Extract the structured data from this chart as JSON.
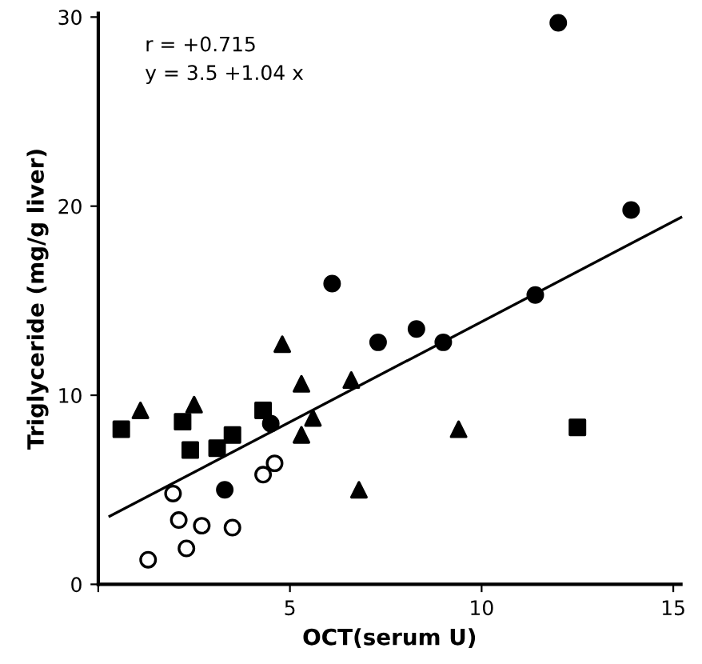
{
  "chart_data": {
    "type": "scatter",
    "xlabel": "OCT(serum U)",
    "ylabel": "Triglyceride (mg/g liver)",
    "annotations": [
      "r = +0.715",
      "y = 3.5 +1.04 x"
    ],
    "xlim": [
      0,
      15.2
    ],
    "ylim": [
      0,
      30.2
    ],
    "xticks": [
      {
        "value": 0,
        "label": null
      },
      5,
      10,
      15
    ],
    "yticks": [
      0,
      10,
      20,
      30
    ],
    "grid": false,
    "legend": false,
    "series": [
      {
        "color": "#000000",
        "marker": "circle",
        "x": [
          12.0,
          13.9,
          11.4,
          7.3,
          8.3,
          9.0,
          6.1,
          3.3,
          4.5
        ],
        "values": [
          29.7,
          19.8,
          15.3,
          12.8,
          13.5,
          12.8,
          15.9,
          5.0,
          8.5
        ]
      },
      {
        "color": "#000000",
        "marker": "triangle",
        "x": [
          1.1,
          2.5,
          4.8,
          5.3,
          6.6,
          5.6,
          5.3,
          6.8,
          9.4
        ],
        "values": [
          9.2,
          9.5,
          12.7,
          10.6,
          10.8,
          8.8,
          7.9,
          5.0,
          8.2
        ]
      },
      {
        "color": "#000000",
        "marker": "square",
        "x": [
          0.6,
          2.2,
          2.4,
          3.1,
          3.5,
          4.3,
          12.5
        ],
        "values": [
          8.2,
          8.6,
          7.1,
          7.2,
          7.9,
          9.2,
          8.3
        ]
      },
      {
        "color": "#ffffff",
        "marker": "circle",
        "x": [
          1.95,
          2.1,
          2.7,
          3.5,
          2.3,
          1.3,
          4.3,
          4.6
        ],
        "values": [
          4.8,
          3.4,
          3.1,
          3.0,
          1.9,
          1.3,
          5.8,
          6.4
        ]
      },
      {
        "type": "line",
        "color": "#000000",
        "marker": "none",
        "line_style": "solid",
        "x": [
          0.3,
          15.2
        ],
        "values": [
          3.6,
          19.4
        ]
      }
    ]
  }
}
